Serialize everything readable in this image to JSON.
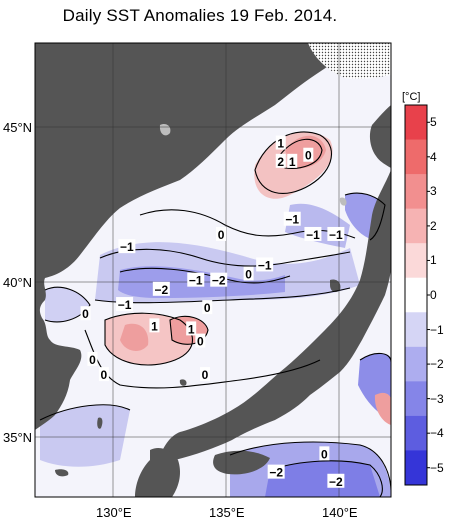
{
  "title": "Daily SST Anomalies 19 Feb. 2014.",
  "colors": {
    "land": "#555555",
    "sea_neutral": "#ffffff",
    "contour": "#000000"
  },
  "chart_data": {
    "type": "heatmap",
    "variable": "SST anomaly",
    "date": "19 Feb. 2014",
    "lon_range_deg_e": [
      127,
      142.5
    ],
    "lat_range_deg_n": [
      32.6,
      47.5
    ],
    "lon_ticks": [
      "130°E",
      "135°E",
      "140°E"
    ],
    "lat_ticks": [
      "35°N",
      "40°N",
      "45°N"
    ],
    "colorbar": {
      "unit": "[°C]",
      "levels": [
        5,
        4,
        3,
        2,
        1,
        0,
        -1,
        -2,
        -3,
        -4,
        -5
      ],
      "colors": [
        "#e8414b",
        "#ee6b6b",
        "#f28f8f",
        "#f6b3b3",
        "#fbd9d9",
        "#ffffff",
        "#d5d5f5",
        "#adadef",
        "#8585e8",
        "#5d5de0",
        "#3535d8"
      ]
    },
    "contour_labels": [
      {
        "text": "1",
        "lon": 137.7,
        "lat": 44.2
      },
      {
        "text": "2",
        "lon": 137.7,
        "lat": 43.6
      },
      {
        "text": "1",
        "lon": 138.2,
        "lat": 43.6
      },
      {
        "text": "0",
        "lon": 138.9,
        "lat": 43.8
      },
      {
        "text": "0",
        "lon": 135.1,
        "lat": 41.2
      },
      {
        "text": "−1",
        "lon": 138.2,
        "lat": 41.7
      },
      {
        "text": "−1",
        "lon": 139.1,
        "lat": 41.2
      },
      {
        "text": "−1",
        "lon": 140.1,
        "lat": 41.2
      },
      {
        "text": "−1",
        "lon": 131.0,
        "lat": 40.8
      },
      {
        "text": "−1",
        "lon": 137.0,
        "lat": 40.2
      },
      {
        "text": "−1",
        "lon": 134.0,
        "lat": 39.7
      },
      {
        "text": "−2",
        "lon": 135.0,
        "lat": 39.7
      },
      {
        "text": "−2",
        "lon": 132.5,
        "lat": 39.4
      },
      {
        "text": "0",
        "lon": 136.3,
        "lat": 39.9
      },
      {
        "text": "0",
        "lon": 134.5,
        "lat": 38.8
      },
      {
        "text": "0",
        "lon": 129.2,
        "lat": 38.6
      },
      {
        "text": "−1",
        "lon": 130.9,
        "lat": 38.9
      },
      {
        "text": "1",
        "lon": 132.2,
        "lat": 38.2
      },
      {
        "text": "1",
        "lon": 133.8,
        "lat": 38.1
      },
      {
        "text": "0",
        "lon": 134.2,
        "lat": 37.7
      },
      {
        "text": "0",
        "lon": 129.5,
        "lat": 37.1
      },
      {
        "text": "0",
        "lon": 130.0,
        "lat": 36.6
      },
      {
        "text": "0",
        "lon": 134.4,
        "lat": 36.6
      },
      {
        "text": "0",
        "lon": 139.6,
        "lat": 34.0
      },
      {
        "text": "−2",
        "lon": 137.5,
        "lat": 33.4
      },
      {
        "text": "−2",
        "lon": 140.1,
        "lat": 33.1
      }
    ]
  }
}
